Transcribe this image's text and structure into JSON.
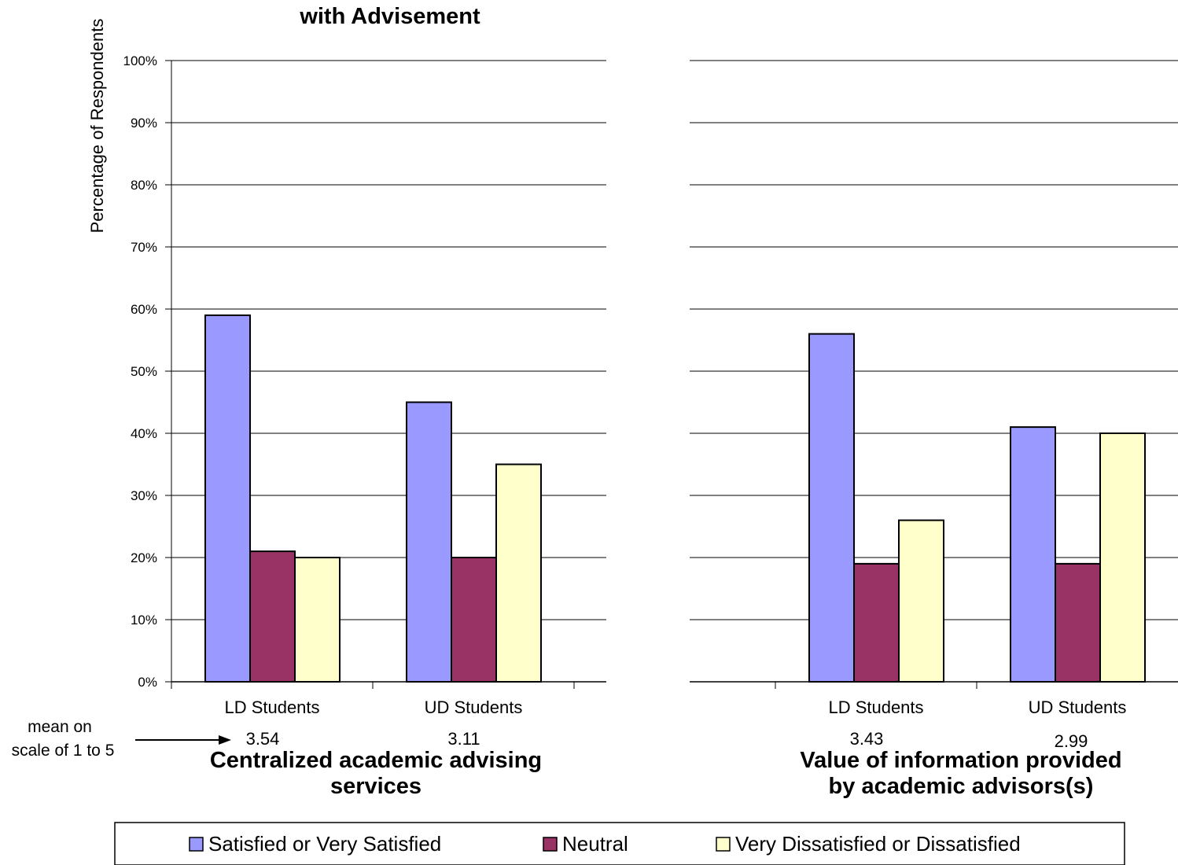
{
  "chart_data": {
    "type": "bar",
    "title": "with Advisement",
    "ylabel": "Percentage of Respondents",
    "ylim": [
      0,
      100
    ],
    "yticks": [
      "0%",
      "10%",
      "20%",
      "30%",
      "40%",
      "50%",
      "60%",
      "70%",
      "80%",
      "90%",
      "100%"
    ],
    "grid": true,
    "legend_placement": "bottom",
    "mean_note": [
      "mean on",
      "scale of 1 to 5"
    ],
    "series": [
      {
        "name": "Satisfied or Very Satisfied",
        "color": "#9999ff"
      },
      {
        "name": "Neutral",
        "color": "#993366"
      },
      {
        "name": "Very Dissatisfied or Dissatisfied",
        "color": "#ffffcc"
      }
    ],
    "panels": [
      {
        "title": [
          "Centralized academic advising",
          "services"
        ],
        "categories": [
          "LD Students",
          "UD Students"
        ],
        "means": [
          "3.54",
          "3.11"
        ],
        "values": [
          [
            59,
            21,
            20
          ],
          [
            45,
            20,
            35
          ]
        ]
      },
      {
        "title": [
          "Value of information provided",
          "by academic advisors(s)"
        ],
        "categories": [
          "LD Students",
          "UD Students"
        ],
        "means": [
          "3.43",
          "2.99"
        ],
        "values": [
          [
            56,
            19,
            26
          ],
          [
            41,
            19,
            40
          ]
        ]
      }
    ]
  }
}
